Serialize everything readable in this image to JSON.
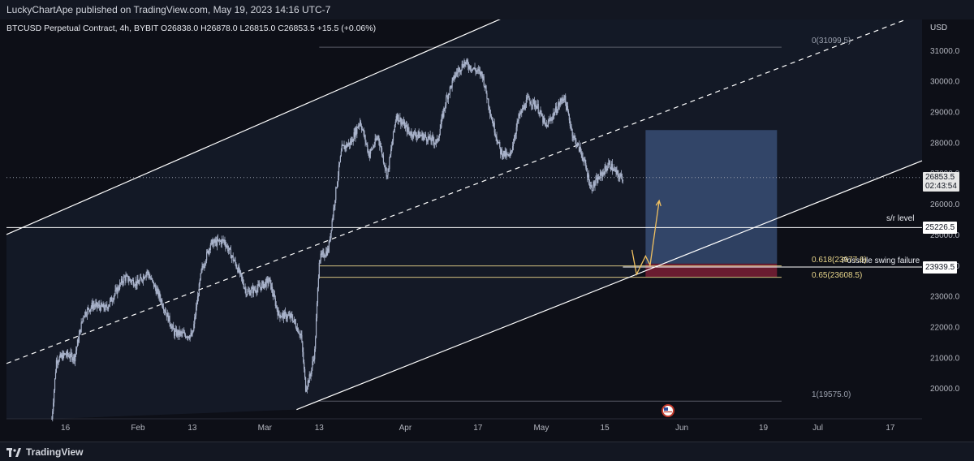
{
  "header": {
    "published_text": "LuckyChartApe published on TradingView.com, May 19, 2023 14:16 UTC-7"
  },
  "symbol_bar": {
    "text": "BTCUSD Perpetual Contract, 4h, BYBIT  O26838.0  H26878.0  L26815.0  C26853.5  +15.5 (+0.06%)"
  },
  "footer": {
    "brand": "TradingView"
  },
  "colors": {
    "background": "#0d0f17",
    "candle": "#aab4cc",
    "channel_line": "#ffffff",
    "fib_line": "#e8d58a",
    "target_box": "#4a6a9e",
    "stop_box": "#7a1f35",
    "arrow": "#f0c060"
  },
  "chart_data": {
    "type": "candlestick",
    "currency_label": "USD",
    "y_range": [
      19000,
      32000
    ],
    "y_ticks": [
      20000,
      21000,
      22000,
      23000,
      24000,
      25000,
      26000,
      27000,
      28000,
      29000,
      30000,
      31000
    ],
    "y_tick_labels": [
      "20000.0",
      "21000.0",
      "22000.0",
      "23000.0",
      "24000.0",
      "25000.0",
      "26000.0",
      "27000.0",
      "28000.0",
      "29000.0",
      "30000.0",
      "31000.0"
    ],
    "x_range": [
      "2023-01-03",
      "2023-07-24"
    ],
    "x_ticks": [
      {
        "date": "2023-01-16",
        "label": "16"
      },
      {
        "date": "2023-02-01",
        "label": "Feb"
      },
      {
        "date": "2023-02-13",
        "label": "13"
      },
      {
        "date": "2023-03-01",
        "label": "Mar"
      },
      {
        "date": "2023-03-13",
        "label": "13"
      },
      {
        "date": "2023-04-01",
        "label": "Apr"
      },
      {
        "date": "2023-04-17",
        "label": "17"
      },
      {
        "date": "2023-05-01",
        "label": "May"
      },
      {
        "date": "2023-05-15",
        "label": "15"
      },
      {
        "date": "2023-06-01",
        "label": "Jun"
      },
      {
        "date": "2023-06-19",
        "label": "19"
      },
      {
        "date": "2023-07-01",
        "label": "Jul"
      },
      {
        "date": "2023-07-17",
        "label": "17"
      }
    ],
    "price_path": [
      [
        "2023-01-13",
        19000
      ],
      [
        "2023-01-14",
        20900
      ],
      [
        "2023-01-16",
        21100
      ],
      [
        "2023-01-18",
        21000
      ],
      [
        "2023-01-20",
        22400
      ],
      [
        "2023-01-22",
        22700
      ],
      [
        "2023-01-25",
        22600
      ],
      [
        "2023-01-29",
        23600
      ],
      [
        "2023-02-01",
        23400
      ],
      [
        "2023-02-03",
        23800
      ],
      [
        "2023-02-06",
        22900
      ],
      [
        "2023-02-09",
        21800
      ],
      [
        "2023-02-13",
        21700
      ],
      [
        "2023-02-15",
        23800
      ],
      [
        "2023-02-17",
        24700
      ],
      [
        "2023-02-20",
        24800
      ],
      [
        "2023-02-23",
        23900
      ],
      [
        "2023-02-25",
        23100
      ],
      [
        "2023-02-28",
        23300
      ],
      [
        "2023-03-02",
        23500
      ],
      [
        "2023-03-04",
        22400
      ],
      [
        "2023-03-07",
        22300
      ],
      [
        "2023-03-09",
        21700
      ],
      [
        "2023-03-10",
        20000
      ],
      [
        "2023-03-11",
        20400
      ],
      [
        "2023-03-12",
        21200
      ],
      [
        "2023-03-13",
        24200
      ],
      [
        "2023-03-15",
        24500
      ],
      [
        "2023-03-17",
        26800
      ],
      [
        "2023-03-18",
        27800
      ],
      [
        "2023-03-20",
        28000
      ],
      [
        "2023-03-22",
        28700
      ],
      [
        "2023-03-24",
        27600
      ],
      [
        "2023-03-26",
        28200
      ],
      [
        "2023-03-28",
        26900
      ],
      [
        "2023-03-30",
        28900
      ],
      [
        "2023-04-02",
        28300
      ],
      [
        "2023-04-05",
        28200
      ],
      [
        "2023-04-08",
        28000
      ],
      [
        "2023-04-10",
        29400
      ],
      [
        "2023-04-12",
        30200
      ],
      [
        "2023-04-14",
        30600
      ],
      [
        "2023-04-15",
        30500
      ],
      [
        "2023-04-18",
        30200
      ],
      [
        "2023-04-20",
        28800
      ],
      [
        "2023-04-22",
        27700
      ],
      [
        "2023-04-24",
        27500
      ],
      [
        "2023-04-26",
        28800
      ],
      [
        "2023-04-28",
        29400
      ],
      [
        "2023-04-30",
        29200
      ],
      [
        "2023-05-02",
        28500
      ],
      [
        "2023-05-04",
        29000
      ],
      [
        "2023-05-06",
        29500
      ],
      [
        "2023-05-08",
        28200
      ],
      [
        "2023-05-10",
        27600
      ],
      [
        "2023-05-12",
        26500
      ],
      [
        "2023-05-14",
        26900
      ],
      [
        "2023-05-16",
        27300
      ],
      [
        "2023-05-18",
        26900
      ],
      [
        "2023-05-19",
        26850
      ]
    ],
    "horizontal_levels": [
      {
        "name": "s/r level",
        "price": 25226.5,
        "label": "s/r level",
        "price_label": "25226.5"
      },
      {
        "name": "swing",
        "price": 23939.5,
        "label": "Possible swing failure",
        "price_label": "23939.5"
      }
    ],
    "current_price": {
      "price": 26853.5,
      "label": "26853.5",
      "countdown": "02:43:54"
    },
    "fibonacci": [
      {
        "level": "0",
        "price": 31099.5,
        "label": "0(31099.5)"
      },
      {
        "level": "1",
        "price": 19575.0,
        "label": "1(19575.0)"
      },
      {
        "level": "0.618",
        "price": 23977.6,
        "label": "0.618(23977.6)"
      },
      {
        "level": "0.65",
        "price": 23608.5,
        "label": "0.65(23608.5)"
      }
    ],
    "channel_lines": [
      {
        "style": "solid",
        "points": [
          [
            "2023-01-03",
            25000
          ],
          [
            "2023-04-14",
            31150
          ],
          [
            "2023-07-24",
            38000
          ]
        ]
      },
      {
        "style": "dashed",
        "points": [
          [
            "2023-01-03",
            20800
          ],
          [
            "2023-07-24",
            32200
          ]
        ]
      },
      {
        "style": "solid",
        "points": [
          [
            "2023-03-08",
            19300
          ],
          [
            "2023-07-24",
            27400
          ]
        ]
      }
    ],
    "position_box": {
      "start": "2023-05-24",
      "end": "2023-06-22",
      "target": 28400,
      "entry": 24050,
      "stop": 23620
    },
    "projection_path": [
      [
        "2023-05-21",
        24500
      ],
      [
        "2023-05-22",
        23700
      ],
      [
        "2023-05-24",
        24300
      ],
      [
        "2023-05-25",
        24000
      ],
      [
        "2023-05-27",
        26100
      ]
    ]
  }
}
